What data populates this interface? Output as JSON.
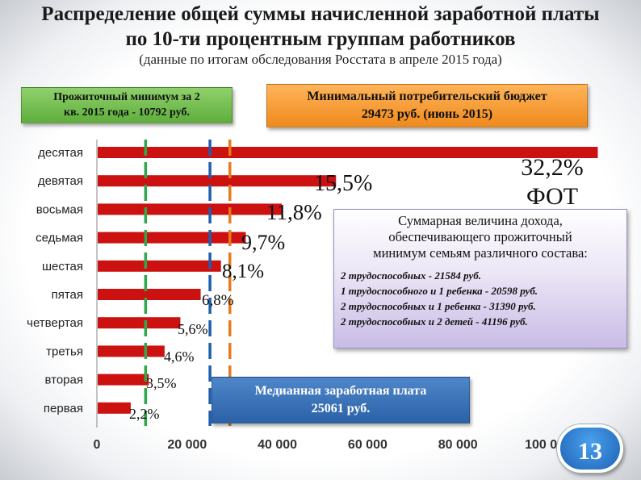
{
  "title_line1": "Распределение общей суммы начисленной заработной платы",
  "title_line2": "по 10-ти процентным группам работников",
  "subtitle": "(данные по итогам обследования Росстата в апреле 2015 года)",
  "subsistence_box": {
    "line1": "Прожиточный минимум за 2",
    "line2": "кв. 2015 года - 10792 руб."
  },
  "budget_box": {
    "line1": "Минимальный потребительский бюджет",
    "line2": "29473 руб.  (июнь 2015)"
  },
  "median_box": {
    "line1": "Медианная заработная плата",
    "line2": "25061 руб."
  },
  "family_box": {
    "title": [
      "Суммарная величина дохода,",
      "обеспечивающего прожиточный",
      "минимум семьям различного состава:"
    ],
    "items": [
      "2 трудоспособных - 21584 руб.",
      "1 трудоспособного и 1 ребенка - 20598 руб.",
      "2 трудоспособных и 1 ребенка - 31390 руб.",
      "2 трудоспособных и 2 детей - 41196 руб."
    ]
  },
  "slide_number": "13",
  "colors": {
    "bar": "#cc1111",
    "green_line": "#2ea84a",
    "blue_line": "#1f5fb0",
    "orange_line": "#e8791e"
  },
  "chart_data": {
    "type": "bar",
    "orientation": "horizontal",
    "categories": [
      "десятая",
      "девятая",
      "восьмая",
      "седьмая",
      "шестая",
      "пятая",
      "четвертая",
      "третья",
      "вторая",
      "первая"
    ],
    "values": [
      111000,
      53000,
      41000,
      33000,
      27500,
      23000,
      18500,
      15000,
      11500,
      7500
    ],
    "data_labels": [
      "32,2% ФОТ",
      "15,5%",
      "11,8%",
      "9,7%",
      "8,1%",
      "6,8%",
      "5,6%",
      "4,6%",
      "3,5%",
      "2,2%"
    ],
    "xticks": [
      0,
      20000,
      40000,
      60000,
      80000,
      100000
    ],
    "xtick_labels": [
      "0",
      "20 000",
      "40 000",
      "60 000",
      "80 000",
      "100 000"
    ],
    "xlim": [
      0,
      120000
    ],
    "reference_lines": [
      {
        "value": 10792,
        "color": "green"
      },
      {
        "value": 25061,
        "color": "blue"
      },
      {
        "value": 29473,
        "color": "orange"
      }
    ],
    "grid": false
  }
}
